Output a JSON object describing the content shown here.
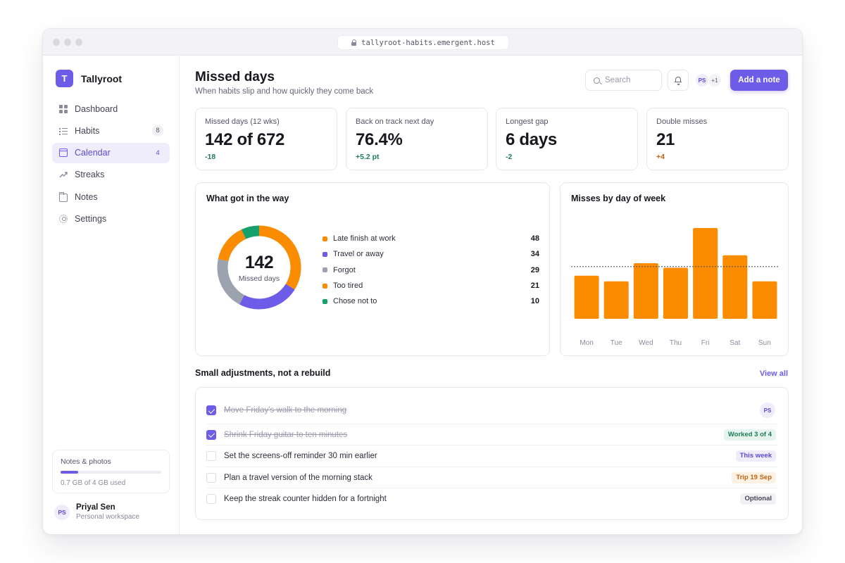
{
  "browser": {
    "url": "tallyroot-habits.emergent.host"
  },
  "sidebar": {
    "brand_initial": "T",
    "brand_name": "Tallyroot",
    "items": [
      {
        "label": "Dashboard",
        "icon": "dashboard-grid-icon",
        "badge": ""
      },
      {
        "label": "Habits",
        "icon": "habits-list-icon",
        "badge": "8"
      },
      {
        "label": "Calendar",
        "icon": "calendar-icon",
        "badge": "4",
        "active": true
      },
      {
        "label": "Streaks",
        "icon": "trend-arrow-icon",
        "badge": ""
      },
      {
        "label": "Notes",
        "icon": "folder-icon",
        "badge": ""
      },
      {
        "label": "Settings",
        "icon": "gear-icon",
        "badge": ""
      }
    ],
    "storage": {
      "title": "Notes & photos",
      "used_text": "0.7 GB of 4 GB used",
      "fraction": 0.175
    },
    "user": {
      "initials": "PS",
      "name": "Priyal Sen",
      "subtitle": "Personal workspace"
    }
  },
  "header": {
    "title": "Missed days",
    "subtitle": "When habits slip and how quickly they come back",
    "search_placeholder": "Search",
    "collaborator_initials": "PS",
    "collaborator_more": "+1",
    "add_button": "Add a note"
  },
  "stats": [
    {
      "label": "Missed days (12 wks)",
      "value": "142 of 672",
      "delta": "-18",
      "delta_color": "#1f7a5a"
    },
    {
      "label": "Back on track next day",
      "value": "76.4%",
      "delta": "+5.2 pt",
      "delta_color": "#1f7a5a"
    },
    {
      "label": "Longest gap",
      "value": "6 days",
      "delta": "-2",
      "delta_color": "#1f7a5a"
    },
    {
      "label": "Double misses",
      "value": "21",
      "delta": "+4",
      "delta_color": "#c2620e"
    }
  ],
  "reasons": {
    "title": "What got in the way",
    "center_value": "142",
    "center_label": "Missed days"
  },
  "weekday": {
    "title": "Misses by day of week"
  },
  "chart_data": [
    {
      "type": "pie",
      "title": "What got in the way",
      "categories": [
        "Late finish at work",
        "Travel or away",
        "Forgot",
        "Too tired",
        "Chose not to"
      ],
      "values": [
        48,
        34,
        29,
        21,
        10
      ],
      "colors": [
        "#fb8c00",
        "#6c5ce7",
        "#9ca3af",
        "#fb8c00",
        "#16a06b"
      ],
      "donut": true
    },
    {
      "type": "bar",
      "title": "Misses by day of week",
      "categories": [
        "Mon",
        "Tue",
        "Wed",
        "Thu",
        "Fri",
        "Sat",
        "Sun"
      ],
      "values": [
        19,
        16.5,
        24.5,
        22.5,
        40,
        28,
        16.5
      ],
      "reference_line": 23,
      "ylim": [
        0,
        40
      ],
      "color": "#fb8c00",
      "grid": false
    }
  ],
  "adjustments": {
    "title": "Small adjustments, not a rebuild",
    "view_all": "View all",
    "tasks": [
      {
        "label": "Move Friday's walk to the morning",
        "done": true,
        "tag": "",
        "assignee": "PS"
      },
      {
        "label": "Shrink Friday guitar to ten minutes",
        "done": true,
        "tag": "Worked 3 of 4",
        "tag_bg": "#e5f5ee",
        "tag_fg": "#1f7a5a"
      },
      {
        "label": "Set the screens-off reminder 30 min earlier",
        "done": false,
        "tag": "This week",
        "tag_bg": "#efedfc",
        "tag_fg": "#5a4bd6"
      },
      {
        "label": "Plan a travel version of the morning stack",
        "done": false,
        "tag": "Trip 19 Sep",
        "tag_bg": "#fdf1e3",
        "tag_fg": "#c2620e"
      },
      {
        "label": "Keep the streak counter hidden for a fortnight",
        "done": false,
        "tag": "Optional",
        "tag_bg": "#f1f1f5",
        "tag_fg": "#444456"
      }
    ]
  }
}
